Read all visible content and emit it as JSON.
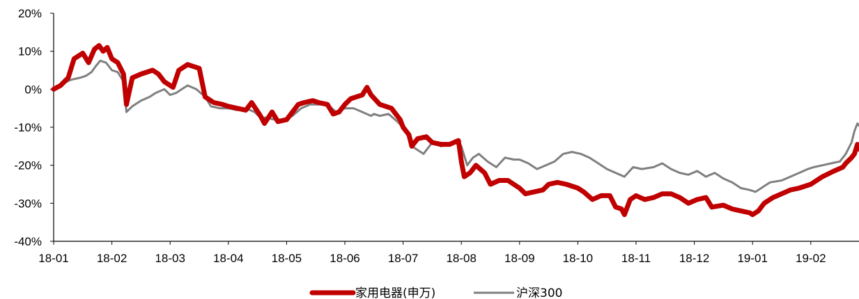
{
  "chart_data": {
    "type": "line",
    "title": "",
    "xlabel": "",
    "ylabel": "",
    "ylim": [
      -40,
      20
    ],
    "y_ticks": [
      "20%",
      "10%",
      "0%",
      "-10%",
      "-20%",
      "-30%",
      "-40%"
    ],
    "x_ticks": [
      "18-01",
      "18-02",
      "18-03",
      "18-04",
      "18-05",
      "18-06",
      "18-07",
      "18-08",
      "18-09",
      "18-10",
      "18-11",
      "18-12",
      "19-01",
      "19-02"
    ],
    "x_range_months": [
      0,
      13.85
    ],
    "grid": false,
    "legend_position": "bottom-center",
    "series": [
      {
        "name": "家用电器(申万)",
        "color": "#C00000",
        "points": [
          [
            0,
            0
          ],
          [
            0.12,
            1
          ],
          [
            0.25,
            3
          ],
          [
            0.35,
            8
          ],
          [
            0.5,
            9.5
          ],
          [
            0.6,
            7
          ],
          [
            0.7,
            10.5
          ],
          [
            0.78,
            11.5
          ],
          [
            0.85,
            10
          ],
          [
            0.92,
            11
          ],
          [
            1,
            8
          ],
          [
            1.1,
            7
          ],
          [
            1.2,
            4
          ],
          [
            1.25,
            -4
          ],
          [
            1.35,
            3
          ],
          [
            1.5,
            4
          ],
          [
            1.7,
            5
          ],
          [
            1.8,
            4
          ],
          [
            1.9,
            2
          ],
          [
            2.05,
            0.5
          ],
          [
            2.15,
            5
          ],
          [
            2.3,
            6.5
          ],
          [
            2.5,
            5.5
          ],
          [
            2.6,
            -2
          ],
          [
            2.75,
            -3.5
          ],
          [
            2.9,
            -4
          ],
          [
            3,
            -4.5
          ],
          [
            3.15,
            -5
          ],
          [
            3.3,
            -5.5
          ],
          [
            3.4,
            -3.5
          ],
          [
            3.55,
            -7
          ],
          [
            3.62,
            -9
          ],
          [
            3.75,
            -6
          ],
          [
            3.85,
            -8.5
          ],
          [
            4,
            -8
          ],
          [
            4.1,
            -6
          ],
          [
            4.2,
            -4
          ],
          [
            4.3,
            -3.5
          ],
          [
            4.45,
            -3
          ],
          [
            4.55,
            -3.5
          ],
          [
            4.7,
            -4
          ],
          [
            4.8,
            -6.5
          ],
          [
            4.9,
            -6
          ],
          [
            5,
            -4
          ],
          [
            5.1,
            -2.5
          ],
          [
            5.2,
            -2
          ],
          [
            5.3,
            -1.5
          ],
          [
            5.38,
            0.5
          ],
          [
            5.45,
            -1.5
          ],
          [
            5.6,
            -4
          ],
          [
            5.8,
            -5
          ],
          [
            5.95,
            -8
          ],
          [
            6,
            -10
          ],
          [
            6.1,
            -12
          ],
          [
            6.15,
            -15
          ],
          [
            6.25,
            -13
          ],
          [
            6.4,
            -12.5
          ],
          [
            6.5,
            -14
          ],
          [
            6.65,
            -14.5
          ],
          [
            6.8,
            -14.5
          ],
          [
            6.95,
            -13.5
          ],
          [
            7,
            -19
          ],
          [
            7.05,
            -23
          ],
          [
            7.15,
            -22
          ],
          [
            7.25,
            -20
          ],
          [
            7.4,
            -22
          ],
          [
            7.5,
            -25
          ],
          [
            7.65,
            -24
          ],
          [
            7.8,
            -24
          ],
          [
            7.9,
            -25
          ],
          [
            8,
            -26
          ],
          [
            8.1,
            -27.5
          ],
          [
            8.25,
            -27
          ],
          [
            8.4,
            -26.5
          ],
          [
            8.5,
            -25
          ],
          [
            8.65,
            -24.5
          ],
          [
            8.8,
            -25
          ],
          [
            9,
            -26
          ],
          [
            9.1,
            -27
          ],
          [
            9.25,
            -29
          ],
          [
            9.4,
            -28
          ],
          [
            9.55,
            -28
          ],
          [
            9.65,
            -31
          ],
          [
            9.75,
            -31.5
          ],
          [
            9.8,
            -33
          ],
          [
            9.9,
            -29
          ],
          [
            10,
            -28
          ],
          [
            10.15,
            -29
          ],
          [
            10.3,
            -28.5
          ],
          [
            10.45,
            -27.5
          ],
          [
            10.6,
            -27.5
          ],
          [
            10.75,
            -28.5
          ],
          [
            10.9,
            -30
          ],
          [
            11.05,
            -29
          ],
          [
            11.2,
            -28.5
          ],
          [
            11.3,
            -31
          ],
          [
            11.5,
            -30.5
          ],
          [
            11.65,
            -31.5
          ],
          [
            11.8,
            -32
          ],
          [
            11.95,
            -32.5
          ],
          [
            12,
            -33
          ],
          [
            12.1,
            -32
          ],
          [
            12.2,
            -30
          ],
          [
            12.35,
            -28.5
          ],
          [
            12.5,
            -27.5
          ],
          [
            12.65,
            -26.5
          ],
          [
            12.8,
            -26
          ],
          [
            13,
            -25
          ],
          [
            13.2,
            -23
          ],
          [
            13.4,
            -21.5
          ],
          [
            13.55,
            -20.5
          ],
          [
            13.6,
            -19.5
          ],
          [
            13.7,
            -18
          ],
          [
            13.75,
            -17
          ],
          [
            13.8,
            -14.5
          ],
          [
            13.85,
            -16
          ]
        ]
      },
      {
        "name": "沪深300",
        "color": "#7F7F7F",
        "points": [
          [
            0,
            0
          ],
          [
            0.15,
            1.5
          ],
          [
            0.3,
            2.5
          ],
          [
            0.45,
            3
          ],
          [
            0.55,
            3.5
          ],
          [
            0.65,
            4.5
          ],
          [
            0.72,
            6
          ],
          [
            0.8,
            7.5
          ],
          [
            0.9,
            7
          ],
          [
            1,
            5
          ],
          [
            1.1,
            4.5
          ],
          [
            1.2,
            2
          ],
          [
            1.25,
            -6
          ],
          [
            1.35,
            -4.5
          ],
          [
            1.5,
            -3
          ],
          [
            1.65,
            -2
          ],
          [
            1.75,
            -1
          ],
          [
            1.9,
            0
          ],
          [
            2,
            -1.5
          ],
          [
            2.1,
            -1
          ],
          [
            2.2,
            0
          ],
          [
            2.3,
            1
          ],
          [
            2.45,
            0
          ],
          [
            2.6,
            -2
          ],
          [
            2.7,
            -4.5
          ],
          [
            2.85,
            -5
          ],
          [
            3,
            -5
          ],
          [
            3.15,
            -5.5
          ],
          [
            3.3,
            -5
          ],
          [
            3.45,
            -6
          ],
          [
            3.55,
            -7.5
          ],
          [
            3.65,
            -7.5
          ],
          [
            3.8,
            -8
          ],
          [
            3.95,
            -8
          ],
          [
            4.1,
            -7
          ],
          [
            4.25,
            -5
          ],
          [
            4.4,
            -4
          ],
          [
            4.55,
            -4
          ],
          [
            4.7,
            -4
          ],
          [
            4.85,
            -6
          ],
          [
            5,
            -5
          ],
          [
            5.15,
            -5
          ],
          [
            5.3,
            -6
          ],
          [
            5.45,
            -7
          ],
          [
            5.5,
            -6.5
          ],
          [
            5.6,
            -7
          ],
          [
            5.75,
            -6.5
          ],
          [
            5.9,
            -8.5
          ],
          [
            6,
            -10
          ],
          [
            6.1,
            -12
          ],
          [
            6.15,
            -15
          ],
          [
            6.25,
            -16
          ],
          [
            6.35,
            -17
          ],
          [
            6.5,
            -14
          ],
          [
            6.65,
            -15
          ],
          [
            6.8,
            -14.5
          ],
          [
            6.95,
            -14
          ],
          [
            7,
            -15
          ],
          [
            7.1,
            -20
          ],
          [
            7.2,
            -18
          ],
          [
            7.3,
            -17
          ],
          [
            7.45,
            -19
          ],
          [
            7.6,
            -20.5
          ],
          [
            7.75,
            -18
          ],
          [
            7.9,
            -18.5
          ],
          [
            8,
            -18.5
          ],
          [
            8.15,
            -19.5
          ],
          [
            8.3,
            -21
          ],
          [
            8.45,
            -20
          ],
          [
            8.6,
            -19
          ],
          [
            8.75,
            -17
          ],
          [
            8.9,
            -16.5
          ],
          [
            9.05,
            -17
          ],
          [
            9.2,
            -18
          ],
          [
            9.35,
            -19.5
          ],
          [
            9.5,
            -21
          ],
          [
            9.65,
            -22
          ],
          [
            9.8,
            -23
          ],
          [
            9.95,
            -20.5
          ],
          [
            10.1,
            -21
          ],
          [
            10.3,
            -20.5
          ],
          [
            10.45,
            -19.5
          ],
          [
            10.6,
            -21
          ],
          [
            10.75,
            -22
          ],
          [
            10.9,
            -22.5
          ],
          [
            11.05,
            -21.5
          ],
          [
            11.2,
            -23
          ],
          [
            11.35,
            -22
          ],
          [
            11.5,
            -23.5
          ],
          [
            11.65,
            -24.5
          ],
          [
            11.8,
            -26
          ],
          [
            11.95,
            -26.5
          ],
          [
            12.05,
            -27
          ],
          [
            12.15,
            -26
          ],
          [
            12.3,
            -24.5
          ],
          [
            12.5,
            -24
          ],
          [
            12.65,
            -23
          ],
          [
            12.8,
            -22
          ],
          [
            12.95,
            -21
          ],
          [
            13.05,
            -20.5
          ],
          [
            13.2,
            -20
          ],
          [
            13.35,
            -19.5
          ],
          [
            13.5,
            -19
          ],
          [
            13.6,
            -17
          ],
          [
            13.7,
            -14
          ],
          [
            13.75,
            -11
          ],
          [
            13.8,
            -9
          ],
          [
            13.85,
            -10
          ]
        ]
      }
    ]
  }
}
